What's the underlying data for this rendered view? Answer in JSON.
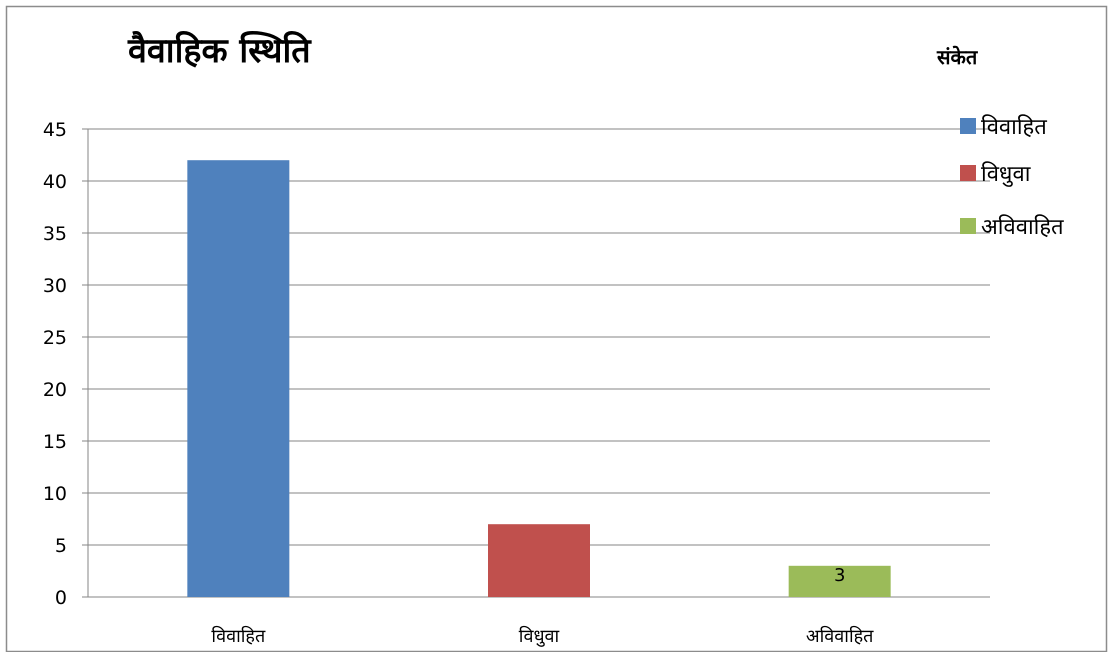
{
  "chart_data": {
    "type": "bar",
    "title": "वैवाहिक स्थिति",
    "categories": [
      "विवाहित",
      "विधुवा",
      "अविवाहित"
    ],
    "values": [
      42,
      7,
      3
    ],
    "colors": [
      "#4f81bd",
      "#c0504d",
      "#9bbb59"
    ],
    "data_labels": [
      "",
      "",
      "3"
    ],
    "ylim": [
      0,
      45
    ],
    "y_ticks": [
      0,
      5,
      10,
      15,
      20,
      25,
      30,
      35,
      40,
      45
    ],
    "grid": true,
    "legend": {
      "title": "संकेत",
      "placement": "right",
      "entries": [
        "विवाहित",
        "विधुवा",
        "अविवाहित"
      ]
    }
  }
}
